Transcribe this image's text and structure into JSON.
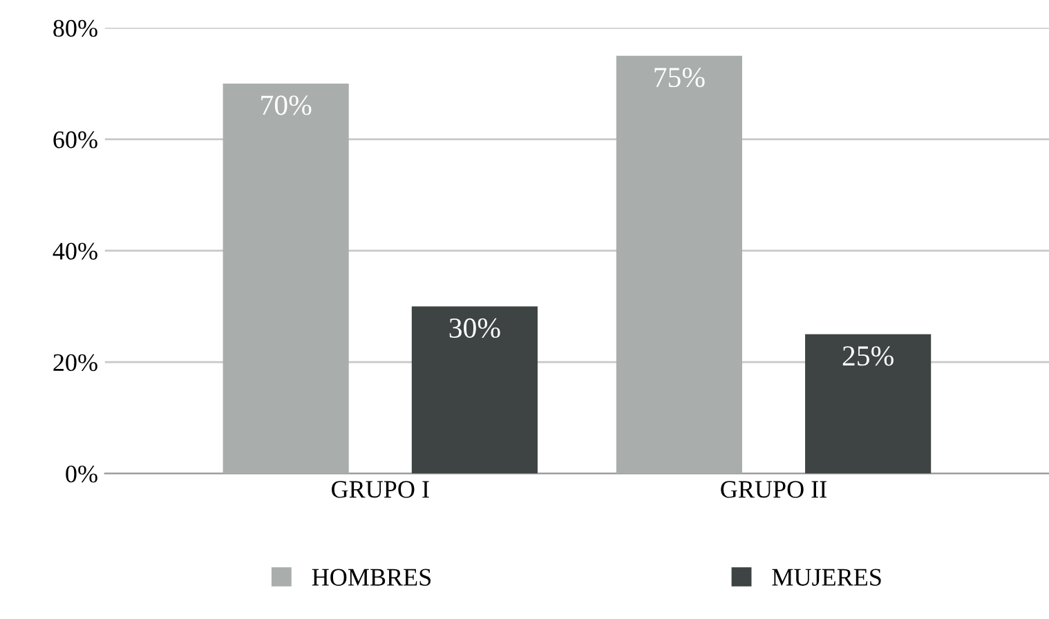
{
  "chart_data": {
    "type": "bar",
    "categories": [
      "GRUPO I",
      "GRUPO II"
    ],
    "series": [
      {
        "name": "HOMBRES",
        "color": "#a9adac",
        "values": [
          70,
          75
        ],
        "value_labels": [
          "70%",
          "75%"
        ]
      },
      {
        "name": "MUJERES",
        "color": "#3e4443",
        "values": [
          30,
          25
        ],
        "value_labels": [
          "30%",
          "25%"
        ]
      }
    ],
    "ylim": [
      0,
      80
    ],
    "yticks": [
      {
        "value": 0,
        "label": "0%"
      },
      {
        "value": 20,
        "label": "20%"
      },
      {
        "value": 40,
        "label": "40%"
      },
      {
        "value": 60,
        "label": "60%"
      },
      {
        "value": 80,
        "label": "80%"
      }
    ],
    "grid": "y",
    "legend": "bottom"
  }
}
